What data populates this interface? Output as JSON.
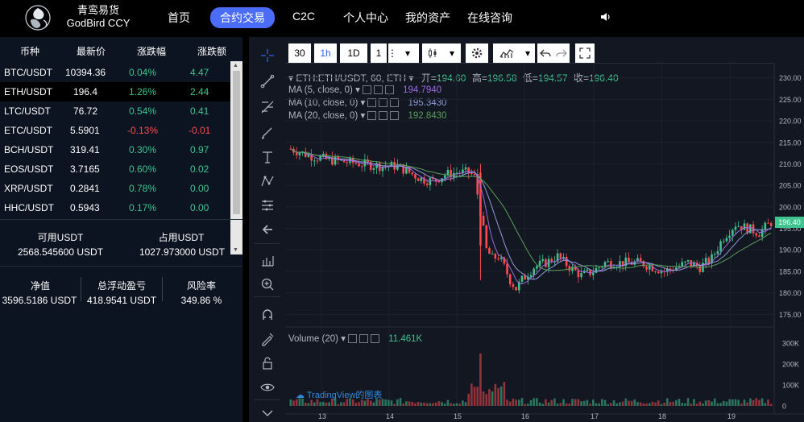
{
  "brand": {
    "line1": "青鸾易货",
    "line2": "GodBird CCY"
  },
  "nav": {
    "items": [
      "首页",
      "合约交易",
      "C2C",
      "个人中心",
      "我的资产",
      "在线咨询"
    ],
    "active_index": 1
  },
  "market": {
    "headers": [
      "币种",
      "最新价",
      "涨跌幅",
      "涨跌额"
    ],
    "rows": [
      {
        "pair": "BTC/USDT",
        "price": "10394.36",
        "pct": "0.04%",
        "amt": "4.47",
        "dir": "up"
      },
      {
        "pair": "ETH/USDT",
        "price": "196.4",
        "pct": "1.26%",
        "amt": "2.44",
        "dir": "up"
      },
      {
        "pair": "LTC/USDT",
        "price": "76.72",
        "pct": "0.54%",
        "amt": "0.41",
        "dir": "up"
      },
      {
        "pair": "ETC/USDT",
        "price": "5.5901",
        "pct": "-0.13%",
        "amt": "-0.01",
        "dir": "down"
      },
      {
        "pair": "BCH/USDT",
        "price": "319.41",
        "pct": "0.30%",
        "amt": "0.97",
        "dir": "up"
      },
      {
        "pair": "EOS/USDT",
        "price": "3.7165",
        "pct": "0.60%",
        "amt": "0.02",
        "dir": "up"
      },
      {
        "pair": "XRP/USDT",
        "price": "0.2841",
        "pct": "0.78%",
        "amt": "0.00",
        "dir": "up"
      },
      {
        "pair": "HHC/USDT",
        "price": "0.5943",
        "pct": "0.17%",
        "amt": "0.00",
        "dir": "up"
      }
    ],
    "selected_index": 1
  },
  "balance": {
    "available_label": "可用USDT",
    "available_value": "2568.545600 USDT",
    "occupied_label": "占用USDT",
    "occupied_value": "1027.973000 USDT"
  },
  "stats": {
    "equity_label": "净值",
    "equity_value": "3596.5186 USDT",
    "pnl_label": "总浮动盈亏",
    "pnl_value": "418.9541 USDT",
    "risk_label": "风险率",
    "risk_value": "349.86 %"
  },
  "toolbar": {
    "intervals": [
      "30",
      "1h",
      "1D",
      "1"
    ],
    "active_interval": "1h"
  },
  "legend": {
    "symbol": "ETH:ETH/USDT, 60, ETH",
    "open_label": "开=",
    "open": "194.60",
    "high_label": "高=",
    "high": "196.58",
    "low_label": "低=",
    "low": "194.57",
    "close_label": "收=",
    "close": "196.40"
  },
  "indicators": [
    {
      "label": "MA (5, close, 0)",
      "value": "194.7940",
      "color": "#9c6ade"
    },
    {
      "label": "MA (10, close, 0)",
      "value": "195.3430",
      "color": "#8f9bd8"
    },
    {
      "label": "MA (20, close, 0)",
      "value": "192.8430",
      "color": "#5a9e5a"
    }
  ],
  "volume": {
    "label": "Volume (20)",
    "value": "11.461K"
  },
  "watermark": "TradingView的图表",
  "price_axis": [
    "230.00",
    "225.00",
    "220.00",
    "215.00",
    "210.00",
    "205.00",
    "200.00",
    "195.00",
    "190.00",
    "185.00",
    "180.00",
    "175.00"
  ],
  "price_badge": "196.40",
  "volume_axis": [
    "300K",
    "200K",
    "100K",
    "0"
  ],
  "time_axis": [
    "13",
    "14",
    "15",
    "16",
    "17",
    "18",
    "19"
  ],
  "colors": {
    "up": "#3fc48f",
    "down": "#ff4d4f",
    "accent": "#4a6cf7",
    "chart_bg": "#131722"
  },
  "chart_data": {
    "type": "candlestick",
    "interval": "1h",
    "x_ticks": [
      "13",
      "14",
      "15",
      "16",
      "17",
      "18",
      "19"
    ],
    "ylim": [
      173,
      232
    ],
    "y_ticks": [
      175,
      180,
      185,
      190,
      195,
      200,
      205,
      210,
      215,
      220,
      225,
      230
    ],
    "close_path": [
      [
        0,
        213.5
      ],
      [
        6,
        212
      ],
      [
        12,
        211
      ],
      [
        18,
        210.5
      ],
      [
        24,
        210
      ],
      [
        30,
        209.5
      ],
      [
        36,
        209.5
      ],
      [
        40,
        208
      ],
      [
        44,
        206.5
      ],
      [
        48,
        206
      ],
      [
        52,
        207.5
      ],
      [
        56,
        208
      ],
      [
        60,
        208
      ],
      [
        62,
        207
      ],
      [
        64,
        199
      ],
      [
        66,
        190
      ],
      [
        68,
        188
      ],
      [
        70,
        188.5
      ],
      [
        72,
        186
      ],
      [
        74,
        183
      ],
      [
        76,
        181
      ],
      [
        78,
        183
      ],
      [
        82,
        186
      ],
      [
        86,
        187
      ],
      [
        90,
        188.5
      ],
      [
        94,
        186
      ],
      [
        98,
        184
      ],
      [
        102,
        185
      ],
      [
        106,
        187
      ],
      [
        110,
        187
      ],
      [
        114,
        187
      ],
      [
        118,
        187
      ],
      [
        122,
        186
      ],
      [
        126,
        185
      ],
      [
        130,
        186
      ],
      [
        134,
        187
      ],
      [
        138,
        186
      ],
      [
        142,
        188
      ],
      [
        146,
        193
      ],
      [
        150,
        196
      ],
      [
        154,
        195
      ],
      [
        158,
        194
      ],
      [
        162,
        196.4
      ]
    ],
    "ma5_last": 194.794,
    "ma10_last": 195.343,
    "ma20_last": 192.843,
    "volume_max_k": 250,
    "volume_ylim": [
      0,
      330
    ]
  }
}
